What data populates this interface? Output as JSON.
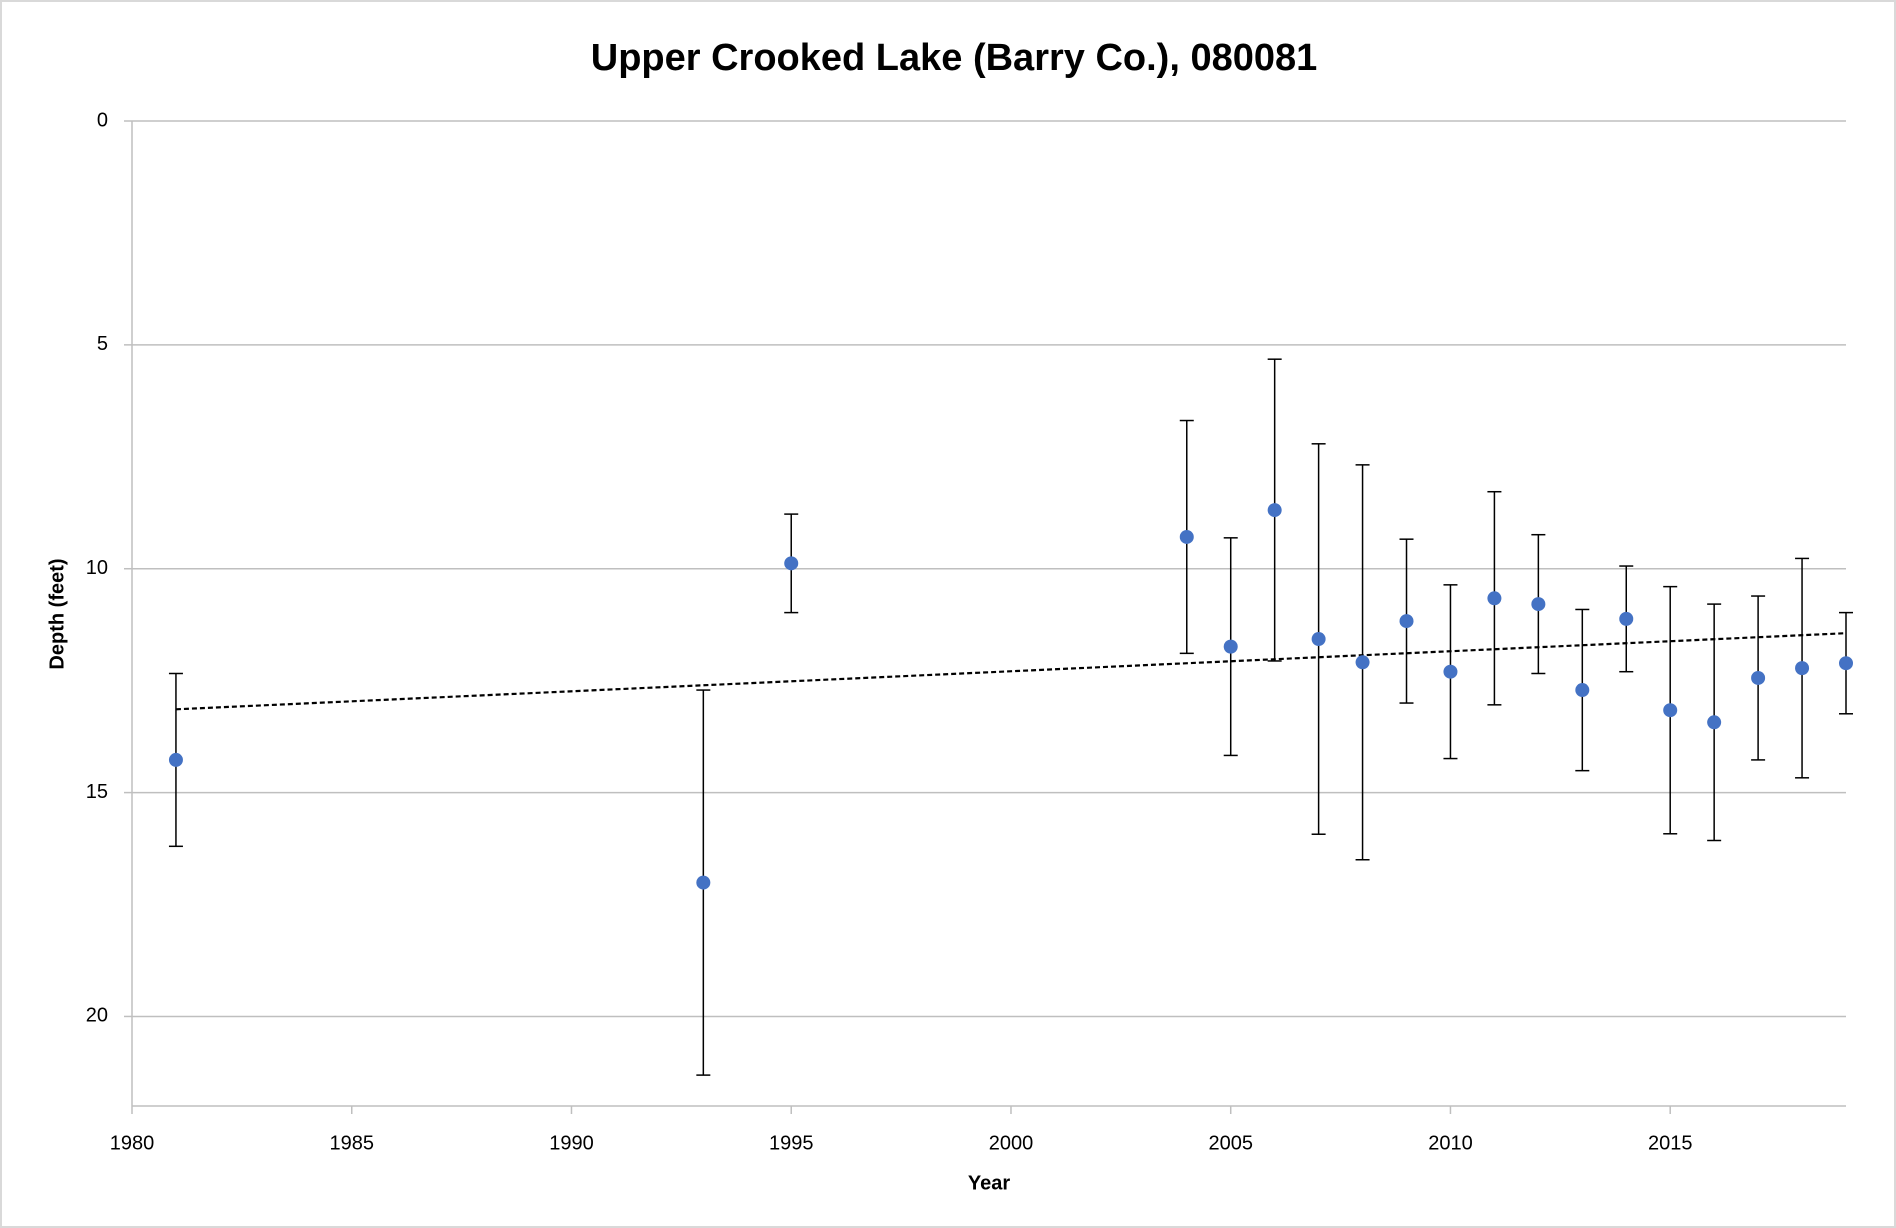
{
  "chart_data": {
    "type": "scatter",
    "title": "Upper Crooked Lake (Barry Co.), 080081",
    "x_label": "Year",
    "y_label": "Depth (feet)",
    "x": [
      1981,
      1993,
      1995,
      2004,
      2005,
      2006,
      2007,
      2008,
      2009,
      2010,
      2011,
      2012,
      2013,
      2014,
      2015,
      2016,
      2017,
      2018,
      2019
    ],
    "series": [
      {
        "color": "#4472c4",
        "values": [
          14.27,
          17.01,
          9.88,
          9.29,
          11.74,
          8.69,
          11.57,
          12.09,
          11.17,
          12.3,
          10.66,
          10.79,
          12.71,
          11.12,
          13.16,
          13.43,
          12.44,
          12.22,
          12.11
        ],
        "errors": [
          1.93,
          4.3,
          1.1,
          2.6,
          2.43,
          3.37,
          4.36,
          4.41,
          1.83,
          1.94,
          2.38,
          1.55,
          1.8,
          1.18,
          2.76,
          2.64,
          1.83,
          2.45,
          1.13
        ]
      }
    ],
    "trendline": {
      "x": [
        1981,
        2019
      ],
      "values": [
        13.14,
        11.44
      ],
      "color": "#000000"
    },
    "xlim": [
      1980,
      2019
    ],
    "xticks": [
      1980,
      1985,
      1990,
      1995,
      2000,
      2005,
      2010,
      2015
    ],
    "ylim": [
      0,
      22
    ],
    "yticks": [
      0,
      5,
      10,
      15,
      20
    ],
    "y_inverted": true,
    "grid": true
  }
}
